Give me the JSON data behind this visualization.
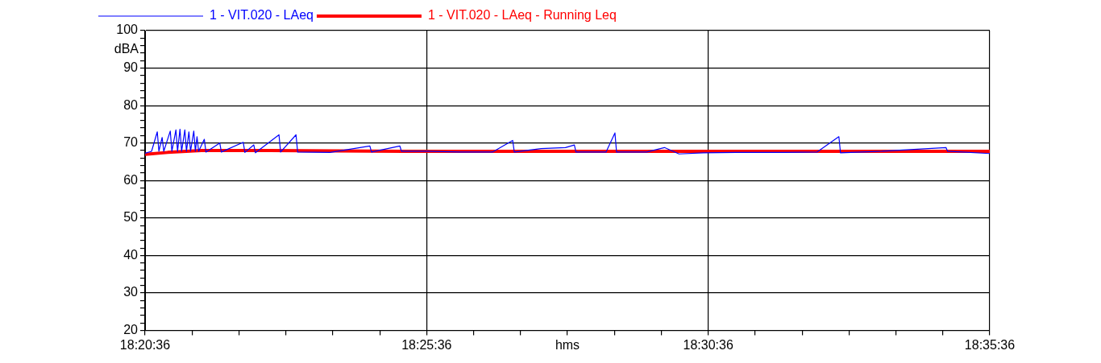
{
  "chart_data": {
    "type": "line",
    "xlabel": "hms",
    "ylabel": "dBA",
    "xlim": [
      18.34333,
      18.59333
    ],
    "ylim": [
      20,
      100
    ],
    "xticks": [
      {
        "value": 18.34333,
        "label": "18:20:36"
      },
      {
        "value": 18.35722,
        "label": null
      },
      {
        "value": 18.37111,
        "label": null
      },
      {
        "value": 18.385,
        "label": null
      },
      {
        "value": 18.39889,
        "label": null
      },
      {
        "value": 18.41278,
        "label": null
      },
      {
        "value": 18.42667,
        "label": "18:25:36"
      },
      {
        "value": 18.44056,
        "label": null
      },
      {
        "value": 18.45444,
        "label": null
      },
      {
        "value": 18.46833,
        "label": null
      },
      {
        "value": 18.48222,
        "label": null
      },
      {
        "value": 18.49611,
        "label": null
      },
      {
        "value": 18.51,
        "label": "18:30:36"
      },
      {
        "value": 18.52389,
        "label": null
      },
      {
        "value": 18.53778,
        "label": null
      },
      {
        "value": 18.55167,
        "label": null
      },
      {
        "value": 18.56556,
        "label": null
      },
      {
        "value": 18.57944,
        "label": null
      },
      {
        "value": 18.59333,
        "label": "18:35:36"
      }
    ],
    "yticks": [
      20,
      {
        "value": 22,
        "label": null
      },
      {
        "value": 24,
        "label": null
      },
      {
        "value": 26,
        "label": null
      },
      {
        "value": 28,
        "label": null
      },
      30,
      {
        "value": 32,
        "label": null
      },
      {
        "value": 34,
        "label": null
      },
      {
        "value": 36,
        "label": null
      },
      {
        "value": 38,
        "label": null
      },
      40,
      {
        "value": 42,
        "label": null
      },
      {
        "value": 44,
        "label": null
      },
      {
        "value": 46,
        "label": null
      },
      {
        "value": 48,
        "label": null
      },
      50,
      {
        "value": 52,
        "label": null
      },
      {
        "value": 54,
        "label": null
      },
      {
        "value": 56,
        "label": null
      },
      {
        "value": 58,
        "label": null
      },
      60,
      {
        "value": 62,
        "label": null
      },
      {
        "value": 64,
        "label": null
      },
      {
        "value": 66,
        "label": null
      },
      {
        "value": 68,
        "label": null
      },
      70,
      {
        "value": 72,
        "label": null
      },
      {
        "value": 74,
        "label": null
      },
      {
        "value": 76,
        "label": null
      },
      {
        "value": 78,
        "label": null
      },
      80,
      {
        "value": 82,
        "label": null
      },
      {
        "value": 84,
        "label": null
      },
      {
        "value": 86,
        "label": null
      },
      {
        "value": 88,
        "label": null
      },
      90,
      {
        "value": 92,
        "label": null
      },
      {
        "value": 94,
        "label": null
      },
      {
        "value": 96,
        "label": null
      },
      {
        "value": 98,
        "label": null
      },
      100
    ],
    "grid": true,
    "legend": "top",
    "marker": "none",
    "line_style": "solid",
    "series": [
      {
        "name": "1 - VIT.020 - LAeq",
        "color": "#0000ff",
        "x": [
          18.34333,
          18.34525,
          18.34694,
          18.34742,
          18.34838,
          18.34886,
          18.35078,
          18.35126,
          18.35246,
          18.35294,
          18.35366,
          18.35414,
          18.3551,
          18.35558,
          18.3563,
          18.35678,
          18.35774,
          18.35822,
          18.3587,
          18.35918,
          18.36086,
          18.36134,
          18.36543,
          18.36591,
          18.37239,
          18.37287,
          18.37551,
          18.37599,
          18.38296,
          18.38344,
          18.388,
          18.38848,
          18.39809,
          18.40986,
          18.41034,
          18.41874,
          18.41922,
          18.42691,
          18.43651,
          18.44612,
          18.45213,
          18.45261,
          18.46053,
          18.46774,
          18.47038,
          18.47086,
          18.47975,
          18.48239,
          18.48287,
          18.49175,
          18.49704,
          18.50136,
          18.50857,
          18.51817,
          18.53258,
          18.54219,
          18.54867,
          18.54915,
          18.56139,
          18.58037,
          18.58085,
          18.59333
        ],
        "values": [
          67.3,
          67.8,
          73,
          67.8,
          71.5,
          67.8,
          73.2,
          67.8,
          73.5,
          67.8,
          73.7,
          67.8,
          73.5,
          67.8,
          73,
          67.8,
          73.2,
          67.8,
          71.7,
          67.8,
          71,
          67.6,
          70,
          67.6,
          70.2,
          67.5,
          69.5,
          67.4,
          72.2,
          67.6,
          72.2,
          67.6,
          67.5,
          69.2,
          67.6,
          69.2,
          67.8,
          67.8,
          67.6,
          67.6,
          70.7,
          67.6,
          68.5,
          68.8,
          69.5,
          67.6,
          67.6,
          72.7,
          67.6,
          67.6,
          68.8,
          67.1,
          67.4,
          67.5,
          67.5,
          67.6,
          71.7,
          67.4,
          67.8,
          68.8,
          67.8,
          67.2
        ]
      },
      {
        "name": "1 - VIT.020 - LAeq - Running Leq",
        "color": "#ff0000",
        "x": [
          18.34333,
          18.35,
          18.36,
          18.38,
          18.42,
          18.5,
          18.59333
        ],
        "values": [
          67,
          67.5,
          68,
          68,
          67.8,
          67.8,
          67.8
        ]
      }
    ]
  }
}
